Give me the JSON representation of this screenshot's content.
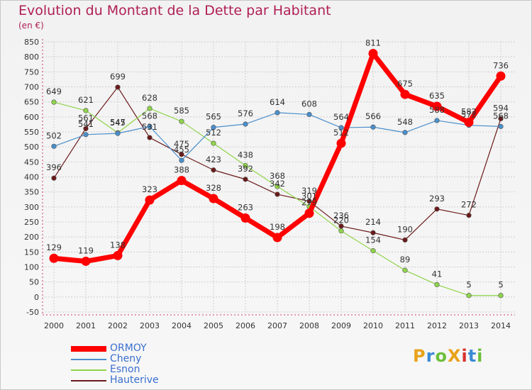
{
  "title": "Evolution du Montant de la Dette par Habitant",
  "subtitle": "(en €)",
  "logo": {
    "text": "ProXiti",
    "colors": [
      "#e8a21a",
      "#3a8ad6",
      "#6cbf3b",
      "#e8a21a",
      "#d8322e",
      "#3a8ad6",
      "#6cbf3b"
    ]
  },
  "chart_data": {
    "type": "line",
    "x": [
      2000,
      2001,
      2002,
      2003,
      2004,
      2005,
      2006,
      2007,
      2008,
      2009,
      2010,
      2011,
      2012,
      2013,
      2014
    ],
    "ylim": [
      -50,
      850
    ],
    "yticks": [
      -50,
      0,
      50,
      100,
      150,
      200,
      250,
      300,
      350,
      400,
      450,
      500,
      550,
      600,
      650,
      700,
      750,
      800,
      850
    ],
    "grid": true,
    "legend": "bottom-left",
    "series": [
      {
        "name": "Hauterive",
        "color": "#6b1a1a",
        "width": 1.2,
        "values": [
          396,
          561,
          699,
          531,
          475,
          423,
          392,
          342,
          319,
          236,
          214,
          190,
          293,
          272,
          594
        ]
      },
      {
        "name": "Esnon",
        "color": "#8fd44a",
        "width": 1.2,
        "values": [
          649,
          621,
          547,
          628,
          585,
          512,
          438,
          368,
          301,
          220,
          154,
          89,
          41,
          5,
          5
        ]
      },
      {
        "name": "Cheny",
        "color": "#4a8fcc",
        "width": 1.2,
        "values": [
          502,
          541,
          545,
          568,
          455,
          565,
          576,
          614,
          608,
          564,
          566,
          548,
          588,
          572,
          568
        ]
      },
      {
        "name": "ORMOY",
        "color": "#ff0000",
        "width": 7,
        "values": [
          129,
          119,
          138,
          323,
          388,
          328,
          263,
          198,
          279,
          512,
          811,
          675,
          635,
          582,
          736
        ]
      }
    ]
  }
}
